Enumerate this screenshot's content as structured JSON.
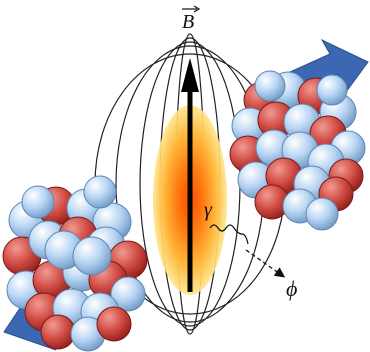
{
  "labels": {
    "field": "B",
    "photon": "γ",
    "particle": "ϕ"
  },
  "colors": {
    "proton": "#c9403a",
    "neutron": "#a9c8ec",
    "arrow": "#3c67b3",
    "field_lines": "#222222",
    "axis": "#000000",
    "glow_core": "#ff5a00",
    "glow_outer": "#ffe060"
  }
}
